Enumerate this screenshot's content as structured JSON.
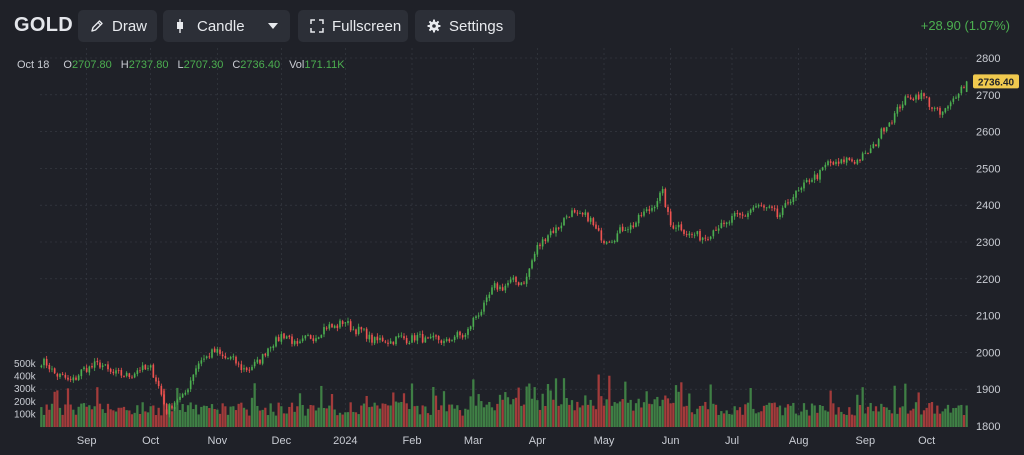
{
  "toolbar": {
    "symbol": "GOLD",
    "draw_label": "Draw",
    "candle_label": "Candle",
    "fullscreen_label": "Fullscreen",
    "settings_label": "Settings",
    "change": "+28.90 (1.07%)"
  },
  "ohlc": {
    "date": "Oct 18",
    "o_label": "O",
    "o": "2707.80",
    "h_label": "H",
    "h": "2737.80",
    "l_label": "L",
    "l": "2707.30",
    "c_label": "C",
    "c": "2736.40",
    "vol_label": "Vol",
    "vol": "171.11K"
  },
  "colors": {
    "background": "#1f2128",
    "up": "#4caf50",
    "down": "#ef5350",
    "grid": "#3a3d46",
    "price_tag": "#f0c94e"
  },
  "chart_data": {
    "type": "candlestick",
    "price_axis": {
      "ylim": [
        1800,
        2800
      ],
      "ticks": [
        1800,
        1900,
        2000,
        2100,
        2200,
        2300,
        2400,
        2500,
        2600,
        2700,
        2800
      ]
    },
    "volume_axis": {
      "ylim": [
        0,
        500000
      ],
      "tick_labels": [
        "500k",
        "400k",
        "300k",
        "200k",
        "100k"
      ],
      "tick_values": [
        500000,
        400000,
        300000,
        200000,
        100000
      ]
    },
    "x_tick_labels": [
      "Sep",
      "Oct",
      "Nov",
      "Dec",
      "2024",
      "Feb",
      "Mar",
      "Apr",
      "May",
      "Jun",
      "Jul",
      "Aug",
      "Sep",
      "Oct"
    ],
    "x_tick_index": [
      17,
      41,
      66,
      90,
      114,
      139,
      162,
      186,
      211,
      236,
      259,
      284,
      309,
      332
    ],
    "last_price_label": "2736.40",
    "close_anchors": [
      [
        0,
        1975
      ],
      [
        10,
        1920
      ],
      [
        20,
        1970
      ],
      [
        30,
        1935
      ],
      [
        41,
        1960
      ],
      [
        47,
        1845
      ],
      [
        53,
        1880
      ],
      [
        60,
        1985
      ],
      [
        66,
        2000
      ],
      [
        78,
        1950
      ],
      [
        90,
        2050
      ],
      [
        96,
        2020
      ],
      [
        108,
        2070
      ],
      [
        114,
        2080
      ],
      [
        126,
        2030
      ],
      [
        139,
        2040
      ],
      [
        151,
        2030
      ],
      [
        159,
        2050
      ],
      [
        170,
        2175
      ],
      [
        182,
        2200
      ],
      [
        186,
        2290
      ],
      [
        199,
        2380
      ],
      [
        206,
        2360
      ],
      [
        211,
        2300
      ],
      [
        224,
        2360
      ],
      [
        233,
        2430
      ],
      [
        236,
        2350
      ],
      [
        247,
        2310
      ],
      [
        259,
        2360
      ],
      [
        270,
        2400
      ],
      [
        276,
        2370
      ],
      [
        284,
        2440
      ],
      [
        295,
        2510
      ],
      [
        309,
        2530
      ],
      [
        320,
        2650
      ],
      [
        326,
        2700
      ],
      [
        332,
        2690
      ],
      [
        337,
        2640
      ],
      [
        347,
        2736.4
      ]
    ]
  }
}
